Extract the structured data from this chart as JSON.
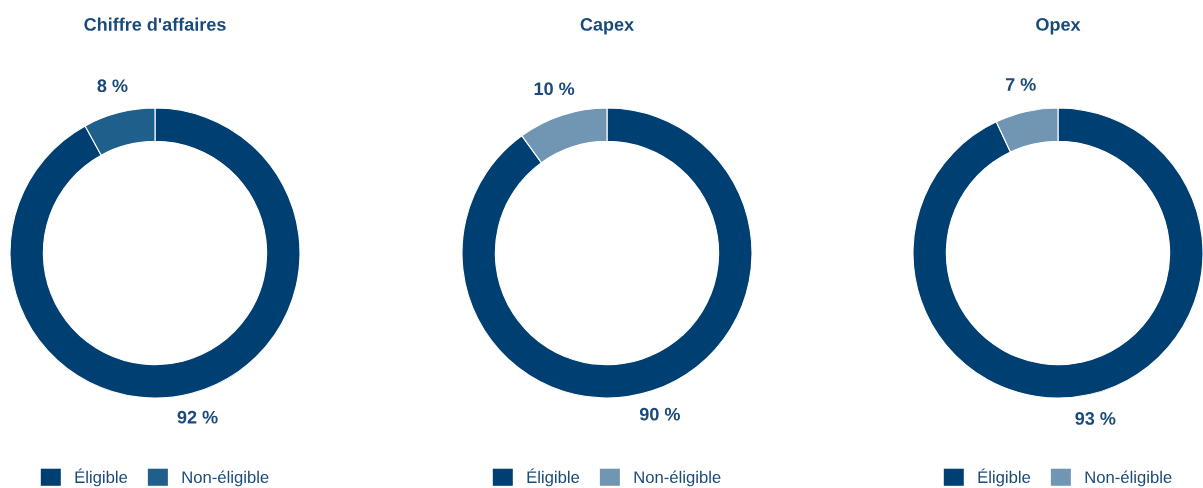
{
  "chart_data": [
    {
      "type": "donut",
      "title": "Chiffre d'affaires",
      "categories": [
        "Éligible",
        "Non-éligible"
      ],
      "values": [
        92,
        8
      ],
      "colors": [
        "#003f72",
        "#1f5f8b"
      ],
      "value_labels": [
        "92 %",
        "8 %"
      ],
      "legend": "bottom"
    },
    {
      "type": "donut",
      "title": "Capex",
      "categories": [
        "Éligible",
        "Non-éligible"
      ],
      "values": [
        90,
        10
      ],
      "colors": [
        "#003f72",
        "#7096b4"
      ],
      "value_labels": [
        "90 %",
        "10 %"
      ],
      "legend": "bottom"
    },
    {
      "type": "donut",
      "title": "Opex",
      "categories": [
        "Éligible",
        "Non-éligible"
      ],
      "values": [
        93,
        7
      ],
      "colors": [
        "#003f72",
        "#7096b4"
      ],
      "value_labels": [
        "93 %",
        "7 %"
      ],
      "legend": "bottom"
    }
  ]
}
